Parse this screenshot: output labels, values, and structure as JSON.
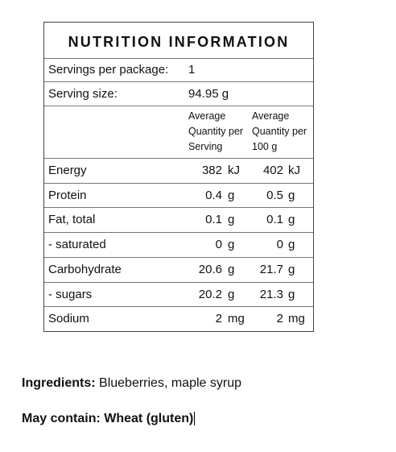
{
  "panel": {
    "title": "NUTRITION INFORMATION",
    "servings_label": "Servings per package:",
    "servings_value": "1",
    "serving_size_label": "Serving size:",
    "serving_size_value": "94.95 g",
    "column_headers": [
      "Average Quantity per Serving",
      "Average Quantity per 100 g"
    ],
    "rows": [
      {
        "name": "Energy",
        "per_serving": {
          "value": "382",
          "unit": "kJ"
        },
        "per_100g": {
          "value": "402",
          "unit": "kJ"
        }
      },
      {
        "name": "Protein",
        "per_serving": {
          "value": "0.4",
          "unit": "g"
        },
        "per_100g": {
          "value": "0.5",
          "unit": "g"
        }
      },
      {
        "name": "Fat, total",
        "per_serving": {
          "value": "0.1",
          "unit": "g"
        },
        "per_100g": {
          "value": "0.1",
          "unit": "g"
        }
      },
      {
        "name": "- saturated",
        "per_serving": {
          "value": "0",
          "unit": "g"
        },
        "per_100g": {
          "value": "0",
          "unit": "g"
        }
      },
      {
        "name": "Carbohydrate",
        "per_serving": {
          "value": "20.6",
          "unit": "g"
        },
        "per_100g": {
          "value": "21.7",
          "unit": "g"
        }
      },
      {
        "name": "- sugars",
        "per_serving": {
          "value": "20.2",
          "unit": "g"
        },
        "per_100g": {
          "value": "21.3",
          "unit": "g"
        }
      },
      {
        "name": "Sodium",
        "per_serving": {
          "value": "2",
          "unit": "mg"
        },
        "per_100g": {
          "value": "2",
          "unit": "mg"
        }
      }
    ]
  },
  "ingredients": {
    "label": "Ingredients:",
    "text": "Blueberries, maple syrup"
  },
  "allergens": {
    "label": "May contain:",
    "text": "Wheat (gluten)"
  }
}
